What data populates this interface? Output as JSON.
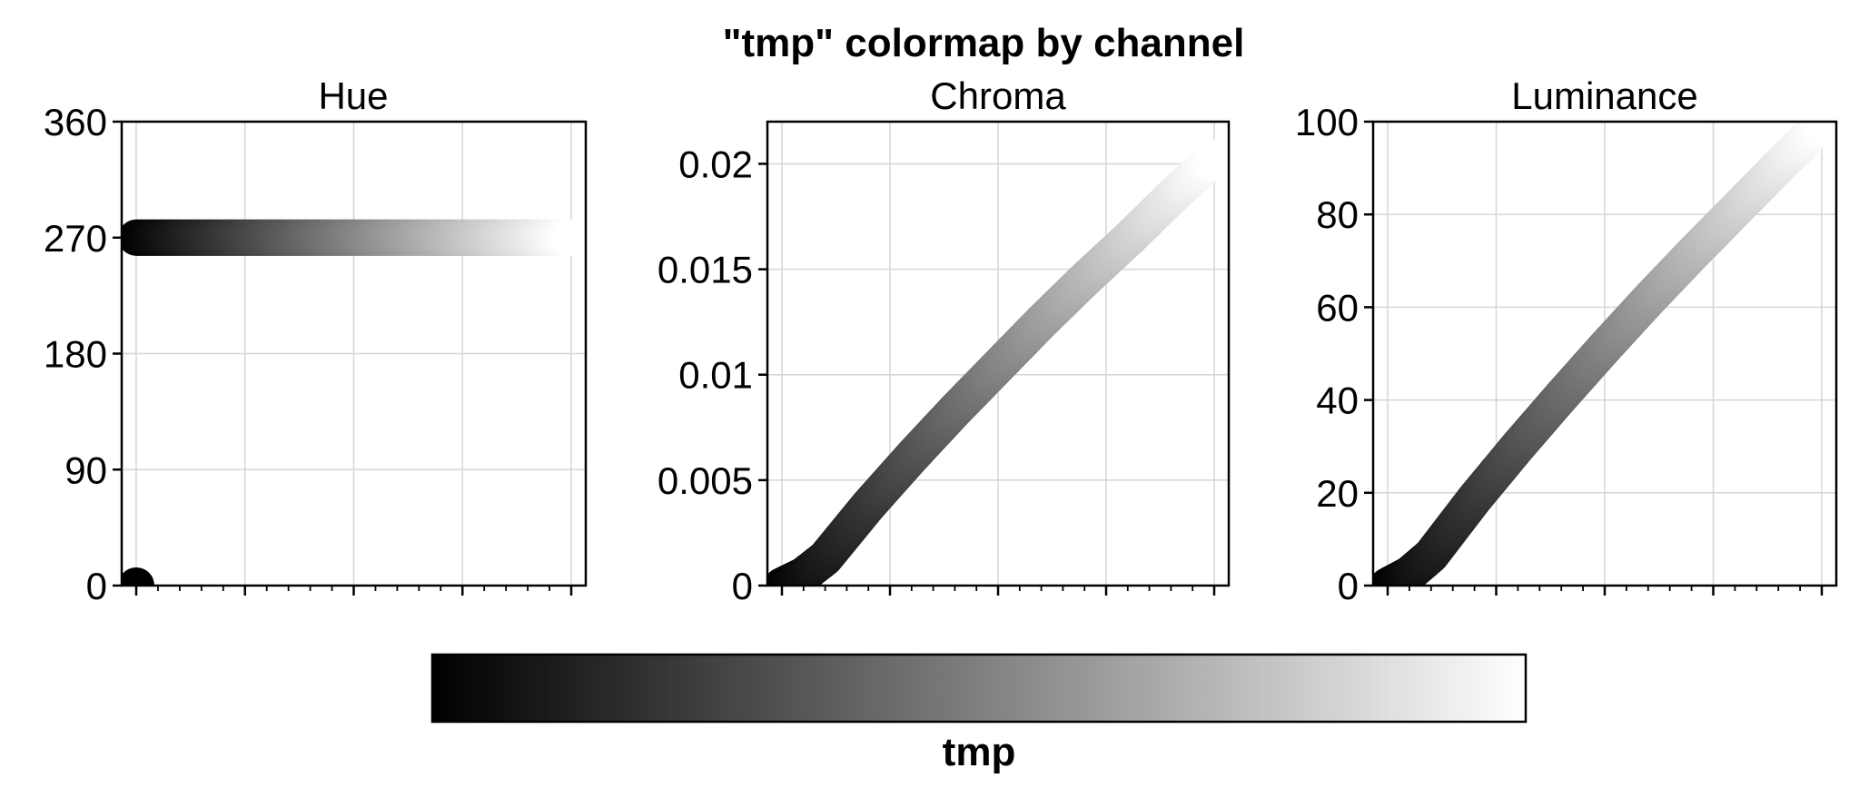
{
  "chart_data": {
    "type": "colormap-channels",
    "title": "\"tmp\" colormap by channel",
    "colormap_name": "tmp",
    "grid": true,
    "panels": [
      {
        "type": "scatter",
        "title": "Hue",
        "ylim": [
          0,
          360
        ],
        "yticks": [
          "0",
          "90",
          "180",
          "270",
          "360"
        ],
        "xlim": [
          0,
          1
        ],
        "x": [
          0.0,
          0.0,
          0.1,
          0.2,
          0.3,
          0.4,
          0.5,
          0.6,
          0.7,
          0.8,
          0.9,
          1.0
        ],
        "y": [
          0,
          270,
          270,
          270,
          270,
          270,
          270,
          270,
          270,
          270,
          270,
          270
        ]
      },
      {
        "type": "scatter",
        "title": "Chroma",
        "ylim": [
          0,
          0.022
        ],
        "yticks": [
          "0",
          "0.005",
          "0.01",
          "0.015",
          "0.02"
        ],
        "xlim": [
          0,
          1
        ],
        "x": [
          0.0,
          0.05,
          0.1,
          0.2,
          0.3,
          0.4,
          0.5,
          0.6,
          0.7,
          0.8,
          0.9,
          1.0
        ],
        "y": [
          0.0,
          0.0005,
          0.0013,
          0.0038,
          0.0061,
          0.0083,
          0.0104,
          0.0125,
          0.0145,
          0.0164,
          0.0184,
          0.0203
        ]
      },
      {
        "type": "scatter",
        "title": "Luminance",
        "ylim": [
          0,
          100
        ],
        "yticks": [
          "0",
          "20",
          "40",
          "60",
          "80",
          "100"
        ],
        "xlim": [
          0,
          1
        ],
        "x": [
          0.0,
          0.05,
          0.1,
          0.2,
          0.3,
          0.4,
          0.5,
          0.6,
          0.7,
          0.8,
          0.9,
          1.0
        ],
        "y": [
          0,
          2.5,
          6.5,
          18.7,
          30,
          40.8,
          51.3,
          61.5,
          71.3,
          80.8,
          90.3,
          99.5
        ]
      }
    ],
    "colorbar": {
      "label": "tmp",
      "from": "#000000",
      "to": "#ffffff"
    }
  }
}
